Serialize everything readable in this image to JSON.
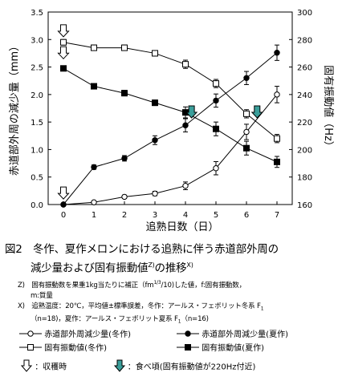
{
  "chart_data": {
    "type": "line",
    "xlabel": "追熟日数（日）",
    "ylabel_left": "赤道部外周の減少量（mm）",
    "ylabel_right": "固有振動値（Hz）",
    "x": [
      0,
      1,
      2,
      3,
      4,
      5,
      6,
      7
    ],
    "xlim": [
      -0.5,
      7.5
    ],
    "ylim_left": [
      0,
      3.5
    ],
    "ylim_right": [
      160,
      300
    ],
    "xticks": [
      "0",
      "1",
      "2",
      "3",
      "4",
      "5",
      "6",
      "7"
    ],
    "yticks_left": [
      "0.0",
      "0.5",
      "1.0",
      "1.5",
      "2.0",
      "2.5",
      "3.0",
      "3.5"
    ],
    "yticks_right": [
      "160",
      "180",
      "200",
      "220",
      "240",
      "260",
      "280",
      "300"
    ],
    "series": [
      {
        "name": "赤道部外周減少量(冬作)",
        "axis": "left",
        "marker": "open-circle",
        "values": [
          0,
          0.04,
          0.14,
          0.2,
          0.34,
          0.66,
          1.32,
          2.0
        ],
        "errors": [
          0,
          0.02,
          0.03,
          0.04,
          0.07,
          0.12,
          0.14,
          0.15
        ]
      },
      {
        "name": "赤道部外周減少量(夏作)",
        "axis": "left",
        "marker": "filled-circle",
        "values": [
          0,
          0.68,
          0.84,
          1.17,
          1.44,
          1.89,
          2.3,
          2.76
        ],
        "errors": [
          0,
          0.04,
          0.05,
          0.08,
          0.12,
          0.12,
          0.12,
          0.14
        ]
      },
      {
        "name": "固有振動値(冬作)",
        "axis": "right",
        "marker": "open-square",
        "values": [
          278,
          274,
          274,
          270,
          262,
          248,
          226,
          208
        ],
        "errors": [
          2,
          2,
          2,
          2,
          3,
          3,
          3,
          3
        ]
      },
      {
        "name": "固有振動値(夏作)",
        "axis": "right",
        "marker": "filled-square",
        "values": [
          259,
          246,
          241,
          234,
          227,
          215,
          201,
          191
        ],
        "errors": [
          1,
          1,
          2,
          2,
          4,
          5,
          5,
          4
        ]
      }
    ],
    "annotations": {
      "harvest_arrows": [
        {
          "x": 0,
          "axis": "right",
          "y": 282
        },
        {
          "x": 0,
          "axis": "right",
          "y": 266
        },
        {
          "x": 0,
          "axis": "left",
          "y": 0.1
        }
      ],
      "eating_arrows": [
        {
          "x": 4.2,
          "axis": "right",
          "y": 223
        },
        {
          "x": 6.35,
          "axis": "right",
          "y": 223
        }
      ]
    }
  },
  "caption": {
    "line1": "図2　冬作、夏作メロンにおける追熟に伴う赤道部外周の",
    "line2": "減少量および固有振動値",
    "sup1": "Z)",
    "line2b": "の推移",
    "sup2": "X)"
  },
  "notes": {
    "z": "Z)　固有振動数を果重1kg当たりに補正（fm",
    "z_sup": "1/3",
    "z_tail": "/10)した値，f:固有振動数，",
    "z2": "m:質量",
    "x": "X)　追熟温度：20℃，平均値±標準誤差，冬作：アールス・フェボリット冬系 F",
    "x_sub": "1",
    "x2": "（n=18)，夏作：アールス・フェボリット夏系 F",
    "x2_sub": "1",
    "x2_tail": "（n=16)"
  },
  "legend": {
    "item1": "赤道部外周減少量(冬作)",
    "item2": "赤道部外周減少量(夏作)",
    "item3": "固有振動値(冬作)",
    "item4": "固有振動値(夏作)",
    "harvest": "：収穫時",
    "eating": "：食べ頃(固有振動値が220Hz付近)"
  }
}
